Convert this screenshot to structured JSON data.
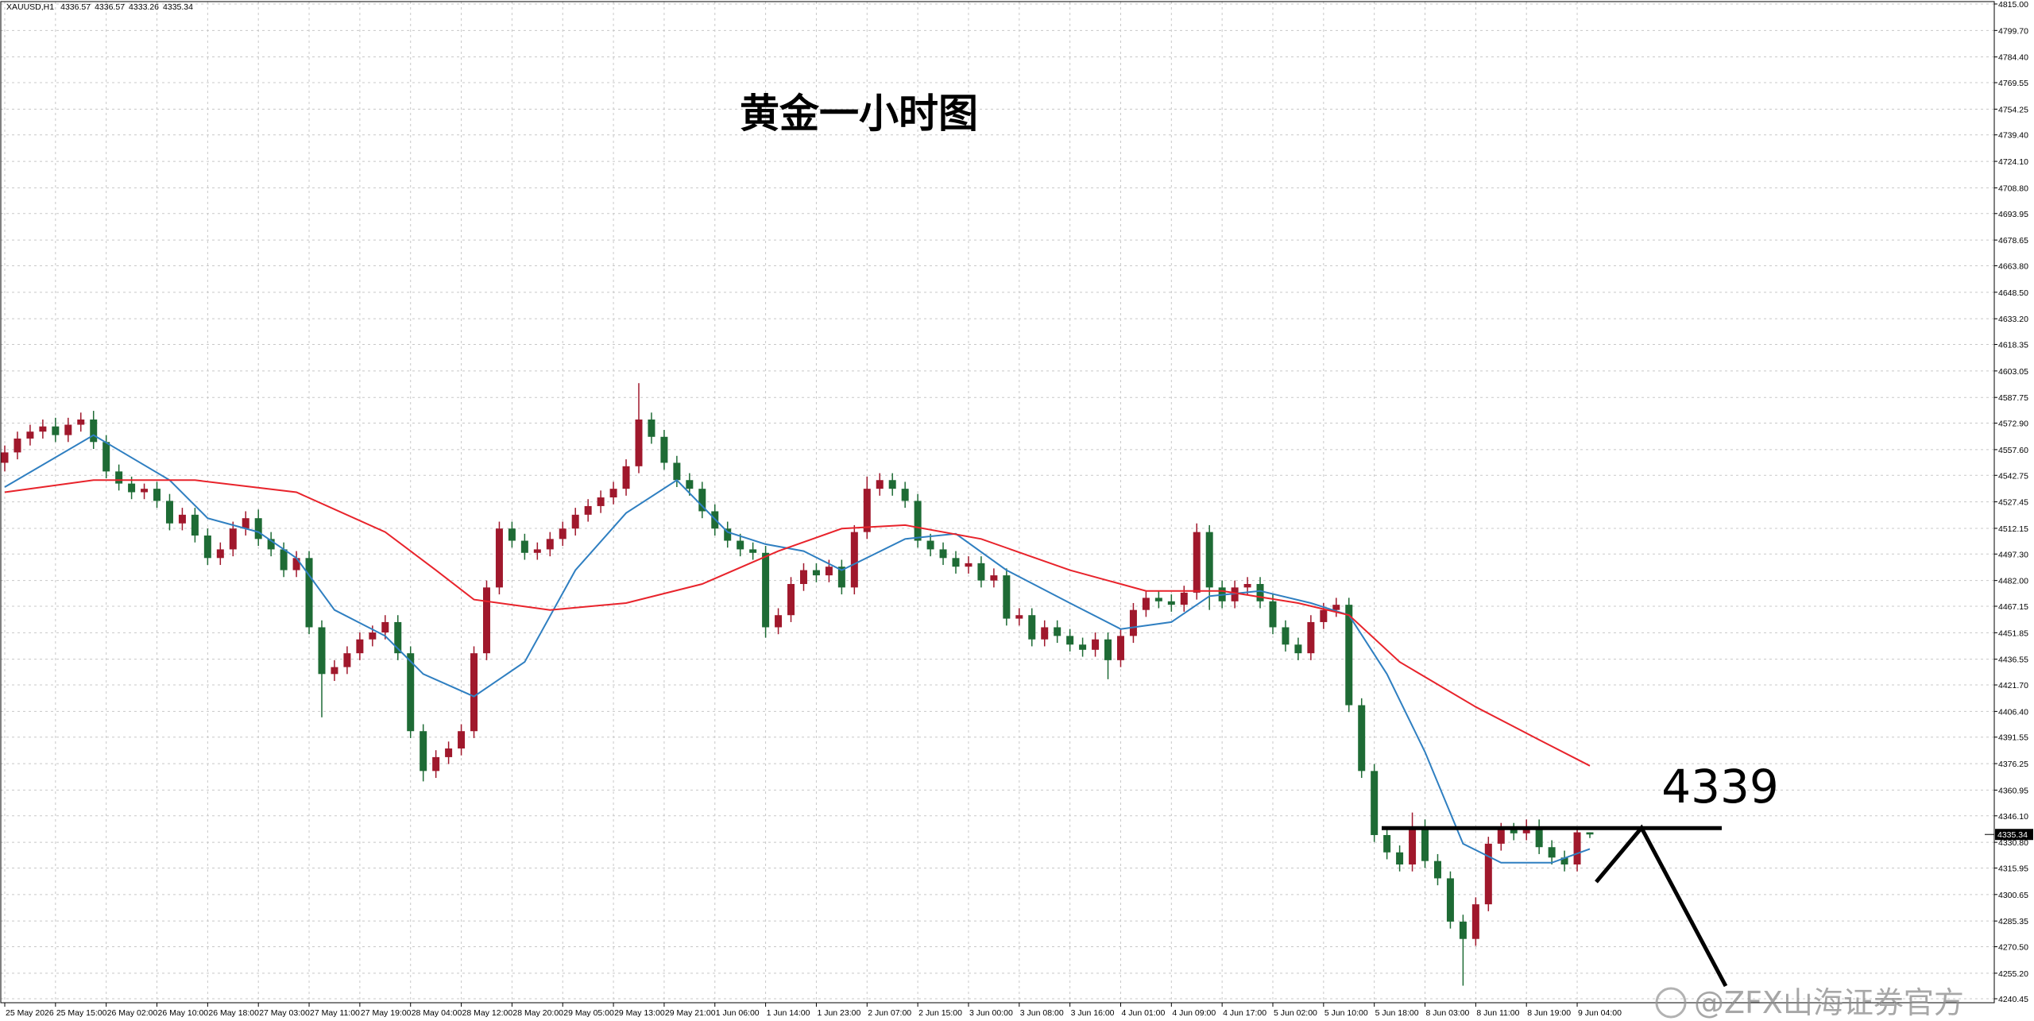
{
  "chart_data": {
    "type": "candlestick",
    "symbol": "XAUUSD,H1",
    "title": "黄金一小时图",
    "watermark": "@ZFX山海证券官方",
    "up_color": "#a0182c",
    "down_color": "#1e6b35",
    "grid": true,
    "categories": [
      "25 May 2026",
      null,
      null,
      null,
      "25 May 15:00",
      null,
      null,
      null,
      "26 May 02:00",
      null,
      null,
      null,
      "26 May 10:00",
      null,
      null,
      null,
      "26 May 18:00",
      null,
      null,
      null,
      "27 May 03:00",
      null,
      null,
      null,
      "27 May 11:00",
      null,
      null,
      null,
      "27 May 19:00",
      null,
      null,
      null,
      "28 May 04:00",
      null,
      null,
      null,
      "28 May 12:00",
      null,
      null,
      null,
      "28 May 20:00",
      null,
      null,
      null,
      "29 May 05:00",
      null,
      null,
      null,
      "29 May 13:00",
      null,
      null,
      null,
      "29 May 21:00",
      null,
      null,
      null,
      "1 Jun 06:00",
      null,
      null,
      null,
      "1 Jun 14:00",
      null,
      null,
      null,
      "1 Jun 23:00",
      null,
      null,
      null,
      "2 Jun 07:00",
      null,
      null,
      null,
      "2 Jun 15:00",
      null,
      null,
      null,
      "3 Jun 00:00",
      null,
      null,
      null,
      "3 Jun 08:00",
      null,
      null,
      null,
      "3 Jun 16:00",
      null,
      null,
      null,
      "4 Jun 01:00",
      null,
      null,
      null,
      "4 Jun 09:00",
      null,
      null,
      null,
      "4 Jun 17:00",
      null,
      null,
      null,
      "5 Jun 02:00",
      null,
      null,
      null,
      "5 Jun 10:00",
      null,
      null,
      null,
      "5 Jun 18:00",
      null,
      null,
      null,
      "8 Jun 03:00",
      null,
      null,
      null,
      "8 Jun 11:00",
      null,
      null,
      null,
      "8 Jun 19:00",
      null,
      null,
      null,
      "9 Jun 04:00",
      null
    ],
    "open": [
      4550,
      4556,
      4564,
      4568,
      4571,
      4566,
      4572,
      4575,
      4562,
      4545,
      4538,
      4533,
      4535,
      4528,
      4515,
      4520,
      4508,
      4495,
      4500,
      4512,
      4518,
      4506,
      4500,
      4488,
      4495,
      4455,
      4428,
      4432,
      4440,
      4448,
      4452,
      4458,
      4440,
      4395,
      4372,
      4380,
      4385,
      4395,
      4440,
      4478,
      4512,
      4505,
      4498,
      4500,
      4506,
      4512,
      4520,
      4525,
      4530,
      4535,
      4548,
      4575,
      4565,
      4550,
      4540,
      4535,
      4522,
      4512,
      4505,
      4500,
      4498,
      4455,
      4462,
      4480,
      4488,
      4485,
      4490,
      4478,
      4510,
      4535,
      4540,
      4535,
      4528,
      4505,
      4500,
      4495,
      4490,
      4492,
      4482,
      4485,
      4460,
      4462,
      4448,
      4455,
      4450,
      4445,
      4442,
      4448,
      4436,
      4450,
      4465,
      4472,
      4470,
      4468,
      4475,
      4510,
      4478,
      4470,
      4478,
      4480,
      4470,
      4455,
      4445,
      4440,
      4458,
      4465,
      4468,
      4410,
      4372,
      4335,
      4325,
      4318,
      4340,
      4320,
      4310,
      4285,
      4275,
      4295,
      4330,
      4338,
      4336,
      4340,
      4328,
      4322,
      4318,
      4336.57
    ],
    "high": [
      4560,
      4568,
      4572,
      4575,
      4576,
      4576,
      4579,
      4580,
      4566,
      4549,
      4542,
      4538,
      4539,
      4532,
      4524,
      4524,
      4512,
      4504,
      4516,
      4522,
      4523,
      4510,
      4504,
      4499,
      4499,
      4459,
      4436,
      4444,
      4452,
      4456,
      4462,
      4462,
      4444,
      4399,
      4384,
      4389,
      4399,
      4444,
      4482,
      4516,
      4516,
      4509,
      4504,
      4510,
      4516,
      4524,
      4529,
      4534,
      4539,
      4552,
      4596,
      4579,
      4569,
      4554,
      4544,
      4539,
      4526,
      4516,
      4509,
      4504,
      4502,
      4466,
      4484,
      4492,
      4492,
      4494,
      4494,
      4514,
      4542,
      4544,
      4544,
      4539,
      4532,
      4509,
      4504,
      4499,
      4496,
      4496,
      4489,
      4489,
      4466,
      4466,
      4459,
      4459,
      4454,
      4449,
      4452,
      4452,
      4454,
      4469,
      4476,
      4476,
      4474,
      4479,
      4515,
      4514,
      4482,
      4482,
      4484,
      4484,
      4474,
      4459,
      4449,
      4462,
      4469,
      4472,
      4472,
      4414,
      4376,
      4339,
      4329,
      4348,
      4344,
      4324,
      4314,
      4289,
      4299,
      4334,
      4342,
      4342,
      4344,
      4344,
      4332,
      4326,
      4340,
      4336.57
    ],
    "low": [
      4545,
      4552,
      4560,
      4564,
      4562,
      4562,
      4568,
      4558,
      4541,
      4534,
      4529,
      4529,
      4524,
      4511,
      4511,
      4504,
      4491,
      4491,
      4496,
      4508,
      4502,
      4496,
      4484,
      4484,
      4451,
      4403,
      4424,
      4428,
      4436,
      4444,
      4448,
      4436,
      4391,
      4366,
      4368,
      4376,
      4381,
      4391,
      4436,
      4474,
      4501,
      4494,
      4494,
      4496,
      4502,
      4508,
      4516,
      4521,
      4526,
      4531,
      4544,
      4561,
      4546,
      4536,
      4531,
      4518,
      4508,
      4501,
      4496,
      4494,
      4449,
      4451,
      4458,
      4476,
      4481,
      4481,
      4474,
      4474,
      4506,
      4531,
      4531,
      4524,
      4501,
      4496,
      4491,
      4486,
      4486,
      4478,
      4478,
      4456,
      4456,
      4444,
      4444,
      4446,
      4441,
      4438,
      4438,
      4425,
      4432,
      4446,
      4461,
      4466,
      4464,
      4464,
      4471,
      4465,
      4466,
      4466,
      4474,
      4466,
      4451,
      4441,
      4436,
      4436,
      4454,
      4461,
      4406,
      4368,
      4331,
      4321,
      4314,
      4314,
      4316,
      4306,
      4281,
      4248,
      4271,
      4291,
      4326,
      4332,
      4332,
      4324,
      4318,
      4314,
      4314,
      4333.26
    ],
    "close": [
      4556,
      4564,
      4568,
      4571,
      4566,
      4572,
      4575,
      4562,
      4545,
      4538,
      4533,
      4535,
      4528,
      4515,
      4520,
      4508,
      4495,
      4500,
      4512,
      4518,
      4506,
      4500,
      4488,
      4495,
      4455,
      4428,
      4432,
      4440,
      4448,
      4452,
      4458,
      4440,
      4395,
      4372,
      4380,
      4385,
      4395,
      4440,
      4478,
      4512,
      4505,
      4498,
      4500,
      4506,
      4512,
      4520,
      4525,
      4530,
      4535,
      4548,
      4575,
      4565,
      4550,
      4540,
      4535,
      4522,
      4512,
      4505,
      4500,
      4498,
      4455,
      4462,
      4480,
      4488,
      4485,
      4490,
      4478,
      4510,
      4535,
      4540,
      4535,
      4528,
      4505,
      4500,
      4495,
      4490,
      4492,
      4482,
      4485,
      4460,
      4462,
      4448,
      4455,
      4450,
      4445,
      4442,
      4448,
      4436,
      4450,
      4465,
      4472,
      4470,
      4468,
      4475,
      4510,
      4478,
      4470,
      4478,
      4480,
      4470,
      4455,
      4445,
      4440,
      4458,
      4465,
      4468,
      4410,
      4372,
      4335,
      4325,
      4318,
      4340,
      4320,
      4310,
      4285,
      4275,
      4295,
      4330,
      4338,
      4336,
      4340,
      4328,
      4322,
      4318,
      4336.57,
      4335.34
    ],
    "series": [
      {
        "color": "#2f7fc1",
        "x": [
          0,
          7,
          13,
          16,
          20,
          23,
          26,
          30,
          33,
          37,
          41,
          45,
          49,
          53,
          57,
          60,
          63,
          66,
          71,
          75,
          79,
          84,
          88,
          92,
          95,
          99,
          103,
          106,
          109,
          112,
          115,
          118,
          122,
          125
        ],
        "values": [
          4536,
          4566,
          4540,
          4518,
          4510,
          4495,
          4465,
          4450,
          4428,
          4415,
          4435,
          4488,
          4521,
          4540,
          4510,
          4503,
          4499,
          4488,
          4506,
          4509,
          4488,
          4469,
          4454,
          4458,
          4473,
          4476,
          4469,
          4462,
          4428,
          4383,
          4330,
          4319,
          4319,
          4327
        ]
      },
      {
        "color": "#e8232b",
        "x": [
          0,
          7,
          15,
          23,
          30,
          34,
          37,
          43,
          49,
          55,
          61,
          66,
          71,
          77,
          84,
          90,
          96,
          102,
          106,
          110,
          116,
          121,
          125
        ],
        "values": [
          4533,
          4540,
          4540,
          4533,
          4510,
          4488,
          4471,
          4465,
          4469,
          4480,
          4499,
          4512,
          4514,
          4506,
          4488,
          4476,
          4476,
          4469,
          4462,
          4435,
          4409,
          4390,
          4375
        ]
      }
    ],
    "annotation": {
      "level": 4339
    },
    "ylim": [
      4240.45,
      4815.0
    ],
    "yticks": [
      4240.45,
      {
        "value": 4255.2,
        "label": "4255.20"
      },
      {
        "value": 4270.5,
        "label": "4270.50"
      },
      4285.35,
      4300.65,
      4315.95,
      {
        "value": 4330.8,
        "label": "4330.80"
      },
      {
        "value": 4346.1,
        "label": "4346.10"
      },
      4360.95,
      4376.25,
      4391.55,
      {
        "value": 4406.4,
        "label": "4406.40"
      },
      {
        "value": 4421.7,
        "label": "4421.70"
      },
      4436.55,
      4451.85,
      4467.15,
      {
        "value": 4482.0,
        "label": "4482.00"
      },
      {
        "value": 4497.3,
        "label": "4497.30"
      },
      4512.15,
      4527.45,
      4542.75,
      {
        "value": 4557.6,
        "label": "4557.60"
      },
      {
        "value": 4572.9,
        "label": "4572.90"
      },
      4587.75,
      4603.05,
      4618.35,
      {
        "value": 4633.2,
        "label": "4633.20"
      },
      {
        "value": 4648.5,
        "label": "4648.50"
      },
      {
        "value": 4663.8,
        "label": "4663.80"
      },
      4678.65,
      4693.95,
      {
        "value": 4708.8,
        "label": "4708.80"
      },
      {
        "value": 4724.1,
        "label": "4724.10"
      },
      {
        "value": 4739.4,
        "label": "4739.40"
      },
      4754.25,
      4769.55,
      {
        "value": 4784.4,
        "label": "4784.40"
      },
      {
        "value": 4799.7,
        "label": "4799.70"
      },
      {
        "value": 4815.0,
        "label": "4815.00"
      }
    ]
  }
}
